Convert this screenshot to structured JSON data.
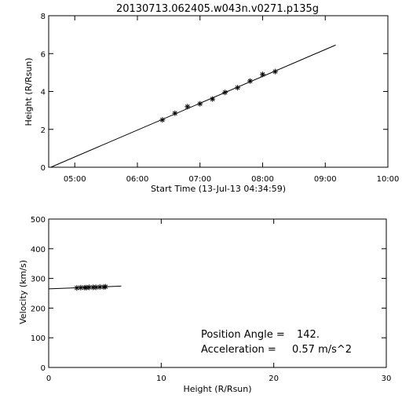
{
  "colors": {
    "background": "#ffffff",
    "ink": "#000000"
  },
  "chart_data": [
    {
      "type": "scatter",
      "title": "20130713.062405.w043n.v0271.p135g",
      "xlabel": "Start Time (13-Jul-13 04:34:59)",
      "ylabel": "Height (R/Rsun)",
      "xlim": [
        "04:35",
        "10:00"
      ],
      "ylim": [
        0,
        8
      ],
      "x_ticks": [
        "05:00",
        "06:00",
        "07:00",
        "08:00",
        "09:00",
        "10:00"
      ],
      "y_ticks": [
        "0",
        "2",
        "4",
        "6",
        "8"
      ],
      "points": [
        {
          "x": "06:24",
          "y": 2.5
        },
        {
          "x": "06:36",
          "y": 2.85
        },
        {
          "x": "06:48",
          "y": 3.2
        },
        {
          "x": "07:00",
          "y": 3.35
        },
        {
          "x": "07:12",
          "y": 3.6
        },
        {
          "x": "07:24",
          "y": 3.95
        },
        {
          "x": "07:36",
          "y": 4.2
        },
        {
          "x": "07:48",
          "y": 4.55
        },
        {
          "x": "08:00",
          "y": 4.9
        },
        {
          "x": "08:12",
          "y": 5.05
        }
      ],
      "fit_line": [
        {
          "x": "04:37",
          "y": 0.0
        },
        {
          "x": "09:10",
          "y": 6.45
        }
      ],
      "grid": false
    },
    {
      "type": "scatter",
      "xlabel": "Height (R/Rsun)",
      "ylabel": "Velocity (km/s)",
      "xlim": [
        0,
        30
      ],
      "ylim": [
        0,
        500
      ],
      "x_ticks": [
        "0",
        "10",
        "20",
        "30"
      ],
      "y_ticks": [
        "0",
        "100",
        "200",
        "300",
        "400",
        "500"
      ],
      "points": [
        {
          "x": 2.5,
          "y": 268
        },
        {
          "x": 2.85,
          "y": 269
        },
        {
          "x": 3.2,
          "y": 269
        },
        {
          "x": 3.35,
          "y": 269
        },
        {
          "x": 3.6,
          "y": 270
        },
        {
          "x": 3.95,
          "y": 270
        },
        {
          "x": 4.2,
          "y": 270
        },
        {
          "x": 4.55,
          "y": 271
        },
        {
          "x": 4.9,
          "y": 271
        },
        {
          "x": 5.05,
          "y": 272
        }
      ],
      "fit_line": [
        {
          "x": 0.0,
          "y": 265
        },
        {
          "x": 6.45,
          "y": 274
        }
      ],
      "annotations": [
        {
          "label": "Position Angle =",
          "value": "142."
        },
        {
          "label": "Acceleration =",
          "value": "0.57 m/s^2"
        }
      ],
      "grid": false
    }
  ]
}
